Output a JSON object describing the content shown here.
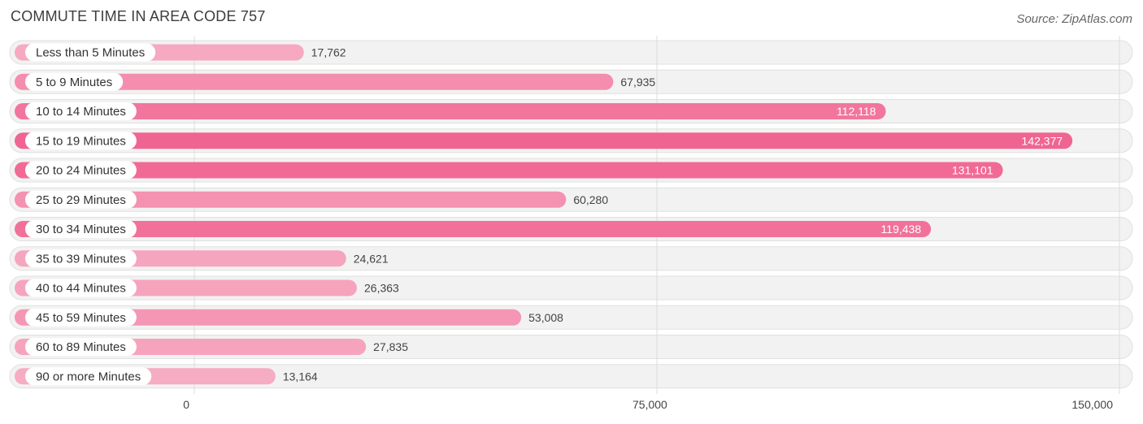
{
  "header": {
    "title": "COMMUTE TIME IN AREA CODE 757",
    "source": "Source: ZipAtlas.com"
  },
  "chart_data": {
    "type": "bar",
    "orientation": "horizontal",
    "title": "COMMUTE TIME IN AREA CODE 757",
    "xlabel": "",
    "ylabel": "",
    "xlim": [
      0,
      150000
    ],
    "x_ticks": [
      0,
      75000,
      150000
    ],
    "x_tick_labels": [
      "0",
      "75,000",
      "150,000"
    ],
    "categories": [
      "Less than 5 Minutes",
      "5 to 9 Minutes",
      "10 to 14 Minutes",
      "15 to 19 Minutes",
      "20 to 24 Minutes",
      "25 to 29 Minutes",
      "30 to 34 Minutes",
      "35 to 39 Minutes",
      "40 to 44 Minutes",
      "45 to 59 Minutes",
      "60 to 89 Minutes",
      "90 or more Minutes"
    ],
    "values": [
      17762,
      67935,
      112118,
      142377,
      131101,
      60280,
      119438,
      24621,
      26363,
      53008,
      27835,
      13164
    ],
    "value_labels": [
      "17,762",
      "67,935",
      "112,118",
      "142,377",
      "131,101",
      "60,280",
      "119,438",
      "24,621",
      "26,363",
      "53,008",
      "27,835",
      "13,164"
    ],
    "colors": {
      "low": "#f7b3c8",
      "high": "#f06492"
    }
  }
}
